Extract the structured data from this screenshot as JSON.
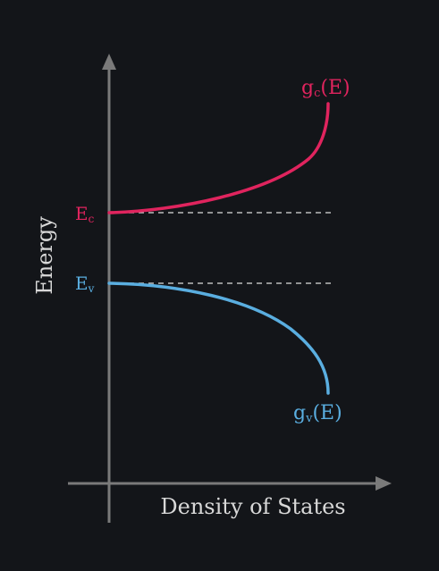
{
  "diagram": {
    "y_axis_label": "Energy",
    "x_axis_label": "Density of States",
    "conduction": {
      "level_label_main": "E",
      "level_label_sub": "c",
      "curve_label_main": "g",
      "curve_label_sub": "c",
      "curve_label_suffix": "(E)",
      "color": "#e0245e"
    },
    "valence": {
      "level_label_main": "E",
      "level_label_sub": "v",
      "curve_label_main": "g",
      "curve_label_sub": "v",
      "curve_label_suffix": "(E)",
      "color": "#5aaee0"
    },
    "axis_color": "#7a7a7a",
    "text_color": "#d8d8d8",
    "dashed_color": "#bdbdbd"
  }
}
